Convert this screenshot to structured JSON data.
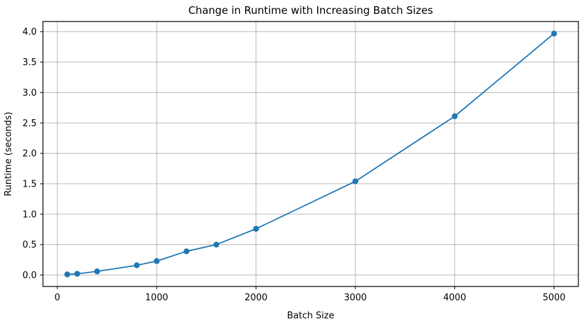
{
  "chart_data": {
    "type": "line",
    "title": "Change in Runtime with Increasing Batch Sizes",
    "xlabel": "Batch Size",
    "ylabel": "Runtime (seconds)",
    "series": [
      {
        "name": "runtime",
        "x": [
          100,
          200,
          400,
          800,
          1000,
          1300,
          1600,
          2000,
          3000,
          4000,
          5000
        ],
        "y": [
          0.01,
          0.02,
          0.06,
          0.16,
          0.23,
          0.39,
          0.5,
          0.76,
          1.54,
          2.61,
          3.97
        ],
        "marker": "circle"
      }
    ],
    "xticks": [
      0,
      1000,
      2000,
      3000,
      4000,
      5000
    ],
    "xtick_labels": [
      "0",
      "1000",
      "2000",
      "3000",
      "4000",
      "5000"
    ],
    "yticks": [
      0.0,
      0.5,
      1.0,
      1.5,
      2.0,
      2.5,
      3.0,
      3.5,
      4.0
    ],
    "ytick_labels": [
      "0.0",
      "0.5",
      "1.0",
      "1.5",
      "2.0",
      "2.5",
      "3.0",
      "3.5",
      "4.0"
    ],
    "xlim": [
      -145,
      5245
    ],
    "ylim": [
      -0.188,
      4.168
    ],
    "grid": true,
    "legend": "none",
    "colors": {
      "line": "#1f77b4",
      "marker": "#1f77b4",
      "grid": "#b0b0b0",
      "spine": "#000000",
      "background": "#ffffff",
      "text": "#000000"
    }
  }
}
